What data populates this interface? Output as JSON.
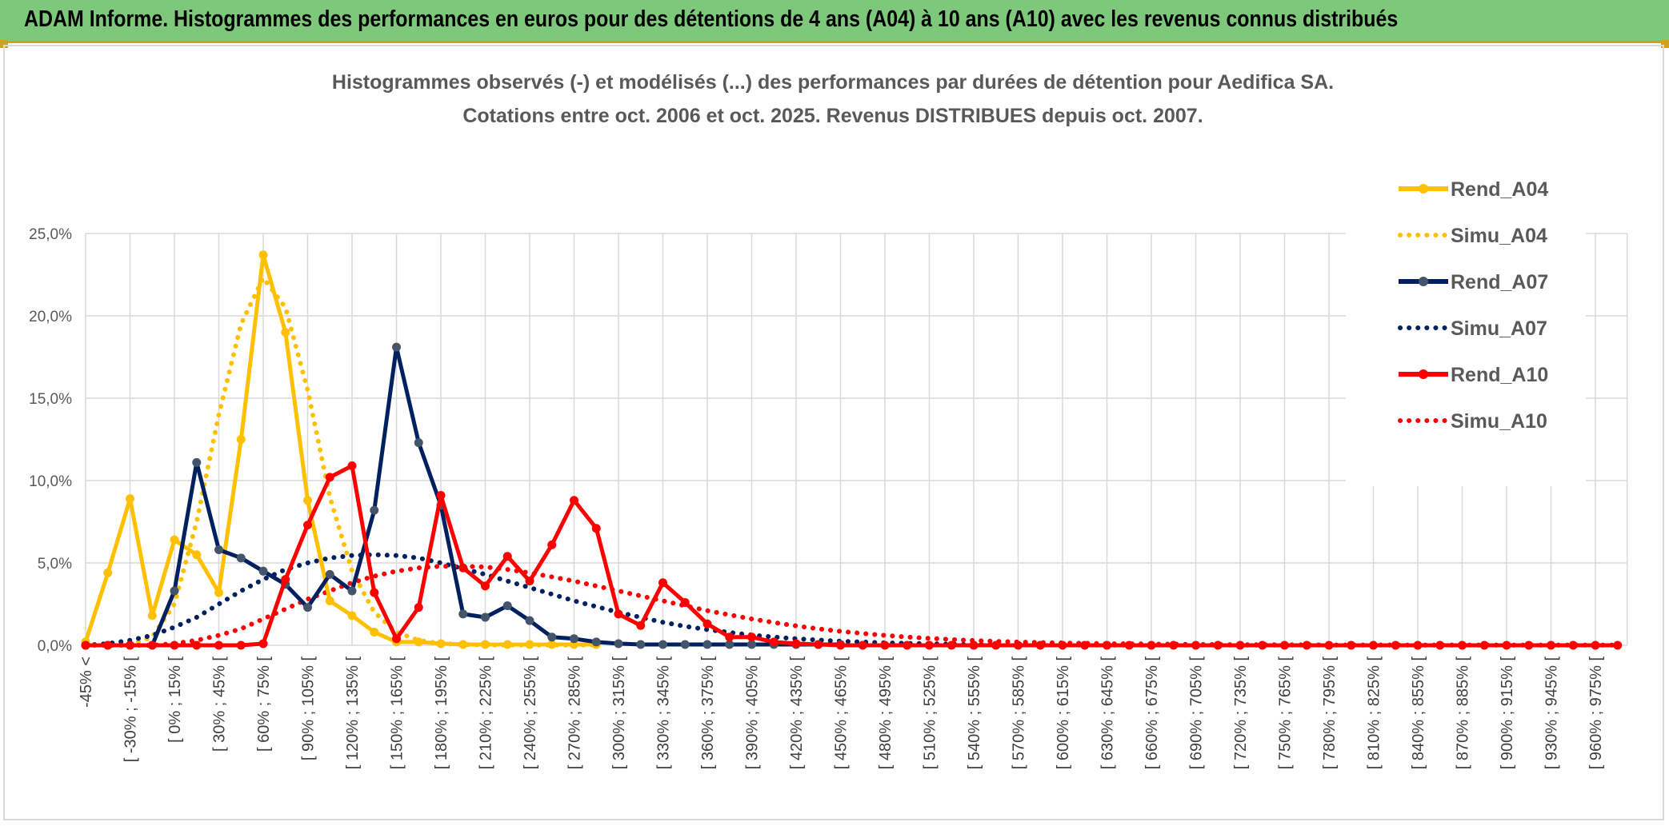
{
  "banner": {
    "title": "ADAM Informe. Histogrammes des performances en euros pour des détentions de 4 ans (A04) à 10 ans (A10) avec les revenus connus distribués"
  },
  "chart_data": {
    "type": "line",
    "title": "Histogrammes observés (-) et modélisés (...) des performances par durées de détention pour Aedifica SA.",
    "subtitle": "Cotations entre oct. 2006 et oct. 2025. Revenus DISTRIBUES depuis oct. 2007.",
    "xlabel": "",
    "ylabel": "",
    "ylim": [
      0,
      25
    ],
    "y_ticks": [
      "0,0%",
      "5,0%",
      "10,0%",
      "15,0%",
      "20,0%",
      "25,0%"
    ],
    "grid": true,
    "legend_position": "right",
    "x_tick_labels": [
      "-45% <",
      "[ -30% ; -15% [",
      "[ 0% ; 15% [",
      "[ 30% ; 45% [",
      "[ 60% ; 75% [",
      "[ 90% ; 105% [",
      "[ 120% ; 135% [",
      "[ 150% ; 165% [",
      "[ 180% ; 195% [",
      "[ 210% ; 225% [",
      "[ 240% ; 255% [",
      "[ 270% ; 285% [",
      "[ 300% ; 315% [",
      "[ 330% ; 345% [",
      "[ 360% ; 375% [",
      "[ 390% ; 405% [",
      "[ 420% ; 435% [",
      "[ 450% ; 465% [",
      "[ 480% ; 495% [",
      "[ 510% ; 525% [",
      "[ 540% ; 555% [",
      "[ 570% ; 585% [",
      "[ 600% ; 615% [",
      "[ 630% ; 645% [",
      "[ 660% ; 675% [",
      "[ 690% ; 705% [",
      "[ 720% ; 735% [",
      "[ 750% ; 765% [",
      "[ 780% ; 795% [",
      "[ 810% ; 825% [",
      "[ 840% ; 855% [",
      "[ 870% ; 885% [",
      "[ 900% ; 915% [",
      "[ 930% ; 945% [",
      "[ 960% ; 975% ["
    ],
    "bins_count": 70,
    "series": [
      {
        "name": "Rend_A04",
        "style": "solid",
        "marker": true,
        "color": "#ffc000",
        "values": [
          0.2,
          4.4,
          8.9,
          1.8,
          6.4,
          5.5,
          3.2,
          12.5,
          23.7,
          19.0,
          8.8,
          2.7,
          1.8,
          0.8,
          0.2,
          0.2,
          0.1,
          0.05,
          0.05,
          0.05,
          0.05,
          0.05,
          0.05,
          0.05
        ]
      },
      {
        "name": "Simu_A04",
        "style": "dotted",
        "marker": false,
        "color": "#ffc000",
        "values": [
          0,
          0,
          0.05,
          0.5,
          2.5,
          7.5,
          14.0,
          19.5,
          22.3,
          20.5,
          15.5,
          9.0,
          4.5,
          2.0,
          0.8,
          0.3,
          0.1,
          0.05,
          0.02,
          0.01,
          0.01,
          0.01,
          0.01,
          0.01
        ]
      },
      {
        "name": "Rend_A07",
        "style": "solid",
        "marker": true,
        "color": "#002060",
        "values": [
          0,
          0,
          0,
          0,
          3.3,
          11.1,
          5.8,
          5.3,
          4.5,
          3.7,
          2.3,
          4.3,
          3.3,
          8.2,
          18.1,
          12.3,
          8.5,
          1.9,
          1.7,
          2.4,
          1.5,
          0.5,
          0.4,
          0.2,
          0.1,
          0.05,
          0.05,
          0.05,
          0.05,
          0.05,
          0.05,
          0.05,
          0.05,
          0.05,
          0.05
        ]
      },
      {
        "name": "Simu_A07",
        "style": "dotted",
        "marker": false,
        "color": "#002060",
        "values": [
          0,
          0.1,
          0.3,
          0.6,
          1.1,
          1.7,
          2.5,
          3.3,
          4.0,
          4.6,
          5.0,
          5.3,
          5.45,
          5.5,
          5.45,
          5.3,
          5.0,
          4.65,
          4.3,
          3.9,
          3.5,
          3.1,
          2.7,
          2.35,
          2.0,
          1.7,
          1.4,
          1.15,
          0.95,
          0.78,
          0.62,
          0.5,
          0.4,
          0.32,
          0.25,
          0.2,
          0.15,
          0.12,
          0.09,
          0.07,
          0.05,
          0.04,
          0.03,
          0.02,
          0.02,
          0.01,
          0.01,
          0.01,
          0.01,
          0.01,
          0.01,
          0.01,
          0.01,
          0.01,
          0.01,
          0.01,
          0.01,
          0.01,
          0.01,
          0.01,
          0.01,
          0.01,
          0.01,
          0.01,
          0.01,
          0.01,
          0.01,
          0.01,
          0.01,
          0.01
        ]
      },
      {
        "name": "Rend_A10",
        "style": "solid",
        "marker": true,
        "color": "#ff0000",
        "values": [
          0,
          0,
          0,
          0,
          0,
          0,
          0,
          0,
          0.1,
          4.0,
          7.3,
          10.2,
          10.9,
          3.2,
          0.4,
          2.3,
          9.1,
          4.7,
          3.6,
          5.4,
          3.9,
          6.1,
          8.8,
          7.1,
          1.9,
          1.2,
          3.8,
          2.6,
          1.3,
          0.5,
          0.5,
          0.2,
          0.1,
          0.05,
          0,
          0,
          0,
          0,
          0,
          0,
          0,
          0,
          0,
          0,
          0,
          0,
          0,
          0,
          0,
          0,
          0,
          0,
          0,
          0,
          0,
          0,
          0,
          0,
          0,
          0,
          0,
          0,
          0,
          0,
          0,
          0,
          0,
          0,
          0,
          0
        ]
      },
      {
        "name": "Simu_A10",
        "style": "dotted",
        "marker": false,
        "color": "#ff0000",
        "values": [
          0,
          0,
          0,
          0,
          0.1,
          0.3,
          0.6,
          1.0,
          1.6,
          2.2,
          2.8,
          3.3,
          3.8,
          4.2,
          4.5,
          4.7,
          4.8,
          4.8,
          4.75,
          4.6,
          4.4,
          4.15,
          3.9,
          3.6,
          3.3,
          3.0,
          2.7,
          2.4,
          2.1,
          1.85,
          1.6,
          1.38,
          1.18,
          1.0,
          0.85,
          0.72,
          0.6,
          0.5,
          0.42,
          0.35,
          0.29,
          0.24,
          0.2,
          0.17,
          0.14,
          0.12,
          0.1,
          0.09,
          0.08,
          0.07,
          0.06,
          0.05,
          0.04,
          0.04,
          0.03,
          0.03,
          0.02,
          0.02,
          0.02,
          0.02,
          0.01,
          0.01,
          0.01,
          0.01,
          0.01,
          0.01,
          0.01,
          0.01,
          0.01,
          0.01
        ]
      }
    ]
  }
}
